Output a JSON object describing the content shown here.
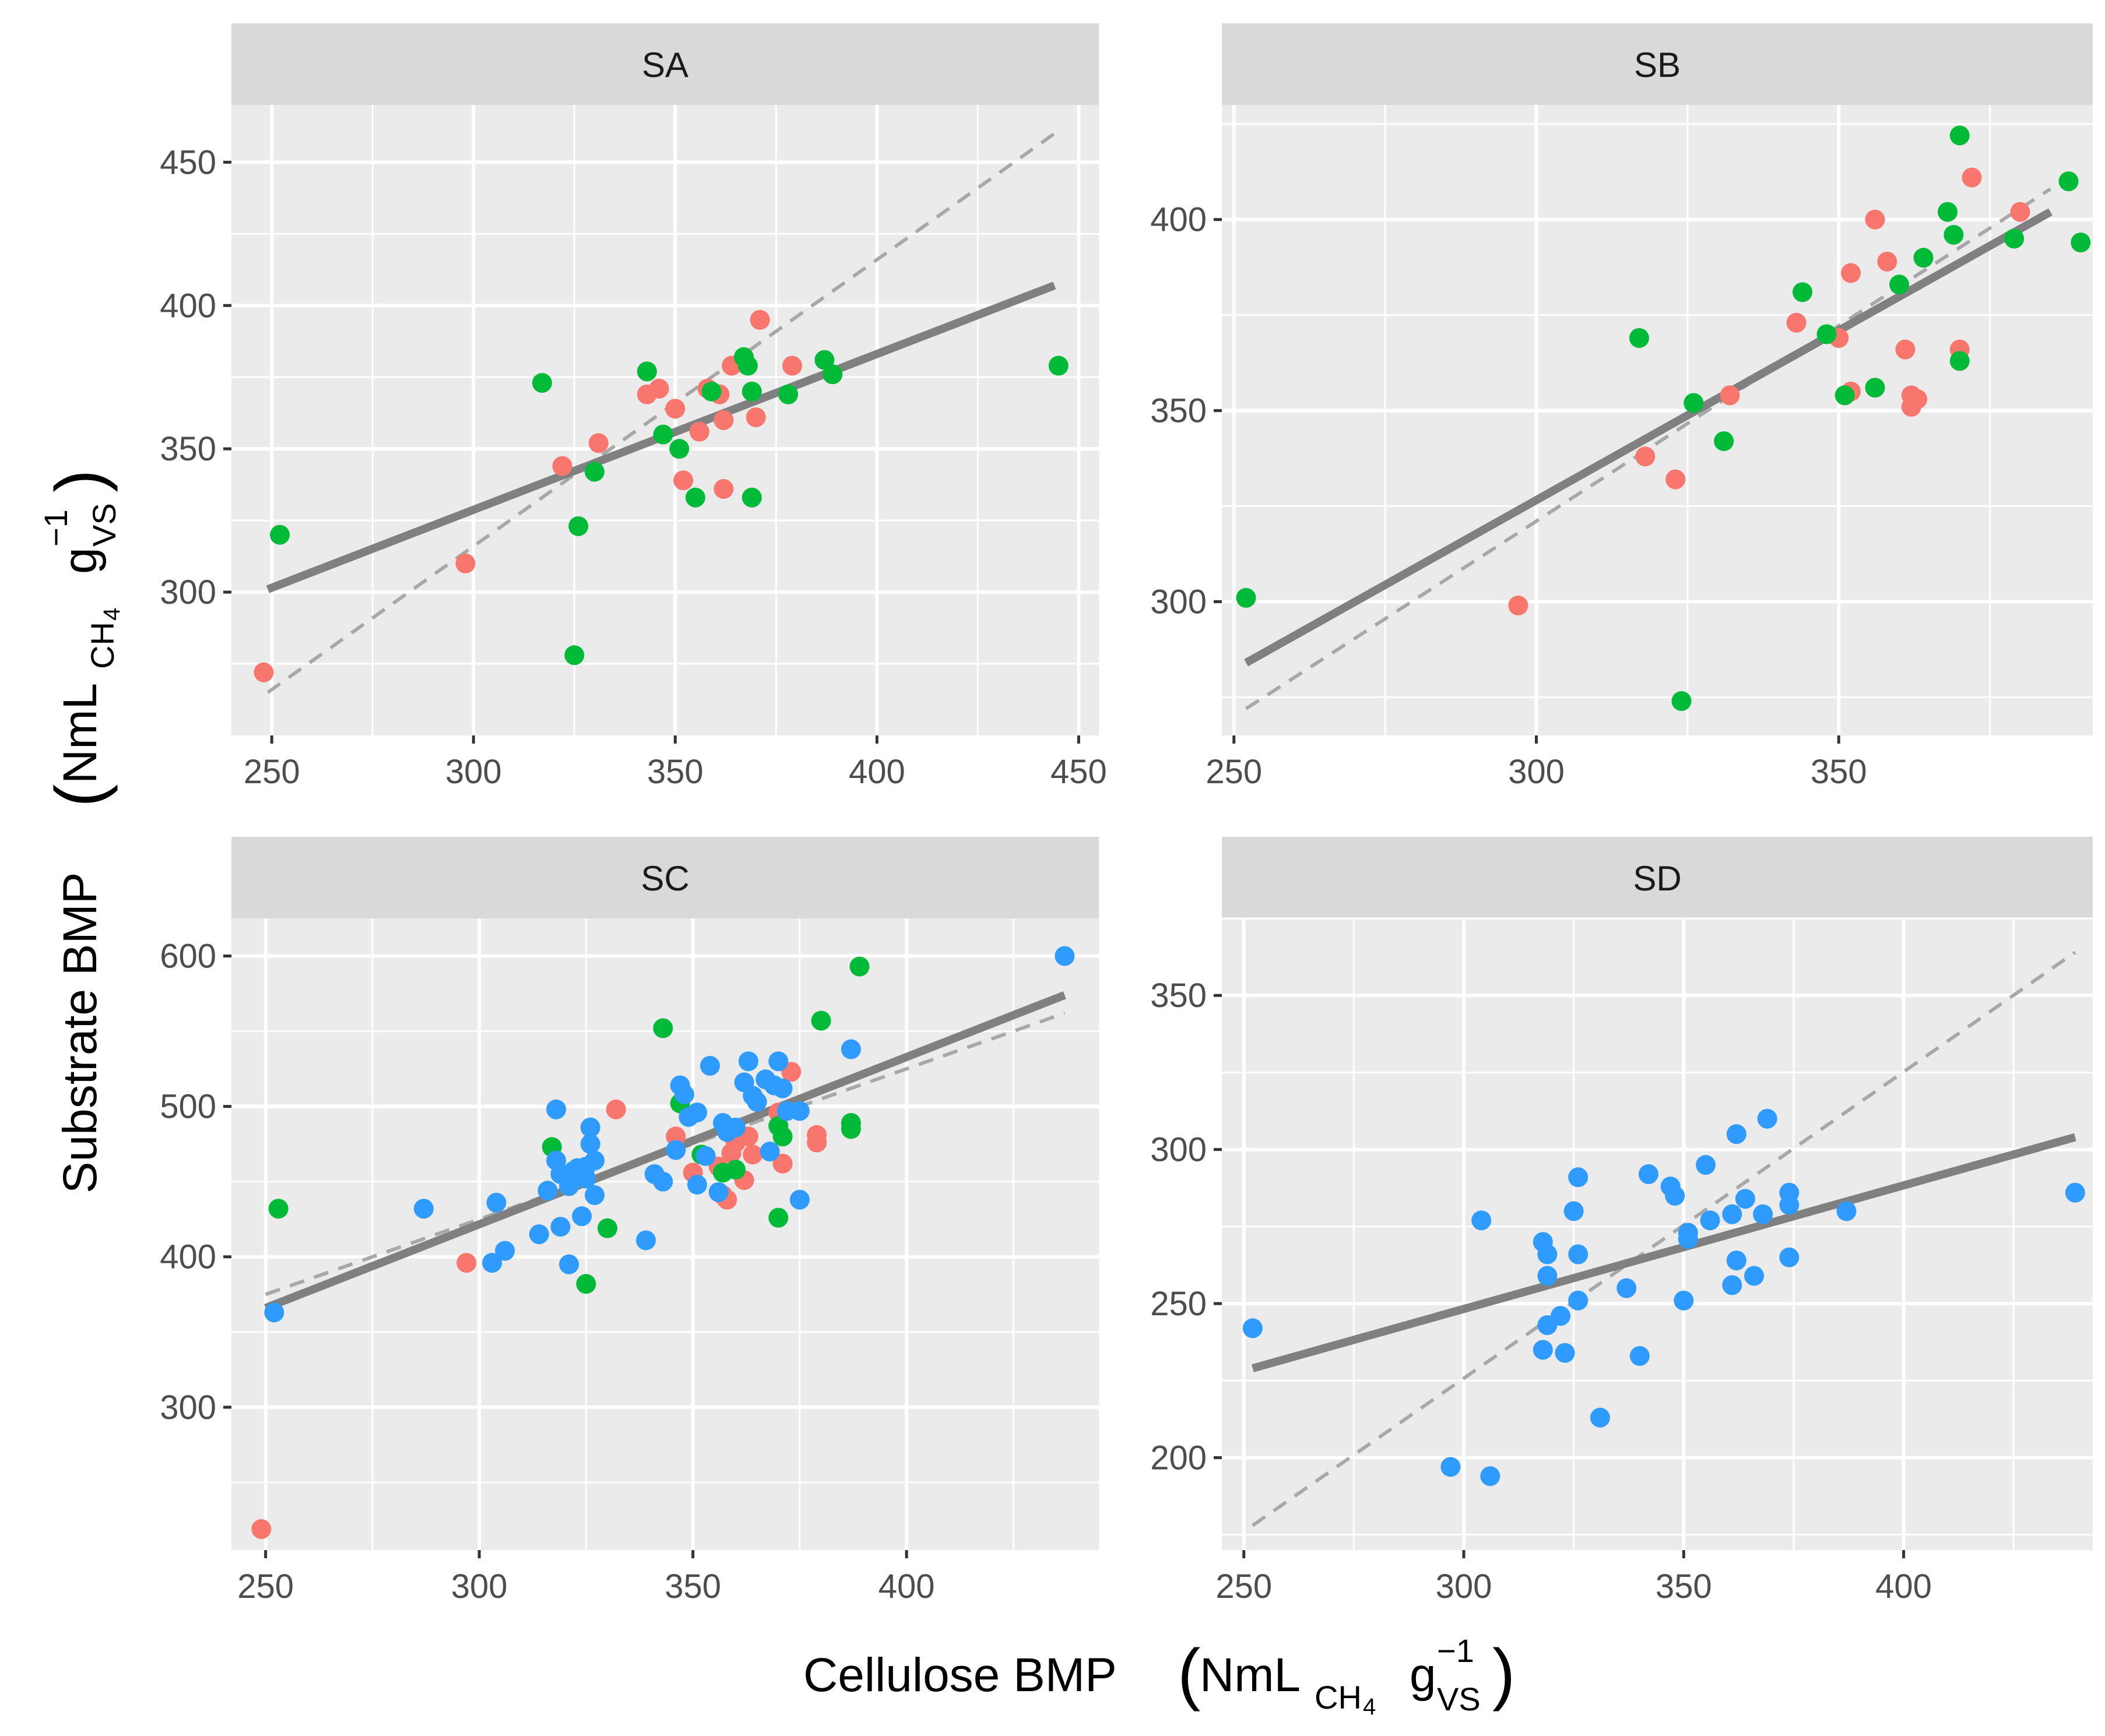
{
  "chart_data": [
    {
      "type": "scatter",
      "panel": "SA",
      "xlim": [
        240,
        455
      ],
      "ylim": [
        250,
        470
      ],
      "x_ticks": [
        250,
        300,
        350,
        400,
        450
      ],
      "x_tick_labels": [
        "250",
        "300",
        "350",
        "400",
        "450"
      ],
      "y_ticks": [
        300,
        350,
        400,
        450
      ],
      "y_tick_labels": [
        "300",
        "350",
        "400",
        "450"
      ],
      "fit": [
        [
          249,
          301
        ],
        [
          444,
          407
        ]
      ],
      "identity": [
        [
          249,
          265
        ],
        [
          445,
          461
        ]
      ],
      "series": [
        {
          "name": "group-1",
          "color": "#F8766D",
          "points": [
            [
              248,
              272
            ],
            [
              298,
              310
            ],
            [
              322,
              344
            ],
            [
              331,
              352
            ],
            [
              343,
              369
            ],
            [
              346,
              371
            ],
            [
              350,
              364
            ],
            [
              352,
              339
            ],
            [
              356,
              356
            ],
            [
              358,
              371
            ],
            [
              361,
              369
            ],
            [
              362,
              360
            ],
            [
              362,
              336
            ],
            [
              364,
              379
            ],
            [
              370,
              361
            ],
            [
              371,
              395
            ],
            [
              379,
              379
            ]
          ]
        },
        {
          "name": "group-2",
          "color": "#00BA38",
          "points": [
            [
              252,
              320
            ],
            [
              317,
              373
            ],
            [
              326,
              323
            ],
            [
              325,
              278
            ],
            [
              330,
              342
            ],
            [
              343,
              377
            ],
            [
              347,
              355
            ],
            [
              351,
              350
            ],
            [
              355,
              333
            ],
            [
              359,
              370
            ],
            [
              367,
              382
            ],
            [
              368,
              379
            ],
            [
              369,
              370
            ],
            [
              369,
              333
            ],
            [
              378,
              369
            ],
            [
              387,
              381
            ],
            [
              389,
              376
            ],
            [
              445,
              379
            ]
          ]
        }
      ]
    },
    {
      "type": "scatter",
      "panel": "SB",
      "xlim": [
        248,
        392
      ],
      "ylim": [
        265,
        430
      ],
      "x_ticks": [
        250,
        300,
        350
      ],
      "x_tick_labels": [
        "250",
        "300",
        "350"
      ],
      "y_ticks": [
        300,
        350,
        400
      ],
      "y_tick_labels": [
        "300",
        "350",
        "400"
      ],
      "fit": [
        [
          252,
          284
        ],
        [
          385,
          402
        ]
      ],
      "identity": [
        [
          252,
          272
        ],
        [
          385,
          408
        ]
      ],
      "series": [
        {
          "name": "group-1",
          "color": "#F8766D",
          "points": [
            [
              297,
              299
            ],
            [
              318,
              338
            ],
            [
              323,
              332
            ],
            [
              332,
              354
            ],
            [
              343,
              373
            ],
            [
              350,
              369
            ],
            [
              352,
              355
            ],
            [
              352,
              386
            ],
            [
              356,
              400
            ],
            [
              358,
              389
            ],
            [
              361,
              366
            ],
            [
              362,
              354
            ],
            [
              362,
              351
            ],
            [
              363,
              353
            ],
            [
              370,
              366
            ],
            [
              372,
              411
            ],
            [
              380,
              402
            ]
          ]
        },
        {
          "name": "group-2",
          "color": "#00BA38",
          "points": [
            [
              252,
              301
            ],
            [
              317,
              369
            ],
            [
              324,
              274
            ],
            [
              326,
              352
            ],
            [
              331,
              342
            ],
            [
              344,
              381
            ],
            [
              348,
              370
            ],
            [
              351,
              354
            ],
            [
              356,
              356
            ],
            [
              360,
              383
            ],
            [
              364,
              390
            ],
            [
              368,
              402
            ],
            [
              369,
              396
            ],
            [
              370,
              363
            ],
            [
              370,
              422
            ],
            [
              379,
              395
            ],
            [
              388,
              410
            ],
            [
              390,
              394
            ]
          ]
        }
      ]
    },
    {
      "type": "scatter",
      "panel": "SC",
      "xlim": [
        242,
        445
      ],
      "ylim": [
        205,
        625
      ],
      "x_ticks": [
        250,
        300,
        350,
        400
      ],
      "x_tick_labels": [
        "250",
        "300",
        "350",
        "400"
      ],
      "y_ticks": [
        300,
        400,
        500,
        600
      ],
      "y_tick_labels": [
        "300",
        "400",
        "500",
        "600"
      ],
      "fit": [
        [
          250,
          366
        ],
        [
          437,
          574
        ]
      ],
      "identity": [
        [
          250,
          375
        ],
        [
          437,
          562
        ]
      ],
      "series": [
        {
          "name": "group-1",
          "color": "#F8766D",
          "points": [
            [
              249,
              219
            ],
            [
              297,
              396
            ],
            [
              332,
              498
            ],
            [
              346,
              480
            ],
            [
              350,
              456
            ],
            [
              356,
              460
            ],
            [
              357,
              441
            ],
            [
              358,
              438
            ],
            [
              359,
              469
            ],
            [
              360,
              476
            ],
            [
              362,
              451
            ],
            [
              363,
              480
            ],
            [
              364,
              468
            ],
            [
              370,
              496
            ],
            [
              371,
              462
            ],
            [
              373,
              523
            ],
            [
              379,
              481
            ],
            [
              379,
              476
            ]
          ]
        },
        {
          "name": "group-2",
          "color": "#00BA38",
          "points": [
            [
              253,
              432
            ],
            [
              317,
              473
            ],
            [
              325,
              382
            ],
            [
              330,
              419
            ],
            [
              343,
              552
            ],
            [
              347,
              502
            ],
            [
              352,
              468
            ],
            [
              357,
              456
            ],
            [
              360,
              458
            ],
            [
              370,
              426
            ],
            [
              370,
              487
            ],
            [
              371,
              480
            ],
            [
              380,
              557
            ],
            [
              387,
              489
            ],
            [
              387,
              485
            ],
            [
              389,
              593
            ]
          ]
        },
        {
          "name": "group-3",
          "color": "#2F9BFF",
          "points": [
            [
              252,
              363
            ],
            [
              287,
              432
            ],
            [
              304,
              436
            ],
            [
              303,
              396
            ],
            [
              306,
              404
            ],
            [
              314,
              415
            ],
            [
              316,
              444
            ],
            [
              318,
              498
            ],
            [
              318,
              464
            ],
            [
              319,
              455
            ],
            [
              319,
              420
            ],
            [
              321,
              395
            ],
            [
              321,
              447
            ],
            [
              322,
              457
            ],
            [
              323,
              459
            ],
            [
              324,
              427
            ],
            [
              325,
              452
            ],
            [
              325,
              460
            ],
            [
              326,
              486
            ],
            [
              326,
              475
            ],
            [
              327,
              464
            ],
            [
              327,
              441
            ],
            [
              339,
              411
            ],
            [
              341,
              455
            ],
            [
              343,
              450
            ],
            [
              346,
              471
            ],
            [
              347,
              514
            ],
            [
              348,
              508
            ],
            [
              349,
              493
            ],
            [
              351,
              496
            ],
            [
              351,
              448
            ],
            [
              353,
              467
            ],
            [
              354,
              527
            ],
            [
              356,
              443
            ],
            [
              357,
              489
            ],
            [
              358,
              483
            ],
            [
              360,
              486
            ],
            [
              362,
              516
            ],
            [
              363,
              530
            ],
            [
              364,
              507
            ],
            [
              365,
              503
            ],
            [
              367,
              518
            ],
            [
              368,
              470
            ],
            [
              369,
              514
            ],
            [
              370,
              530
            ],
            [
              371,
              512
            ],
            [
              372,
              497
            ],
            [
              375,
              497
            ],
            [
              375,
              438
            ],
            [
              387,
              538
            ],
            [
              437,
              600
            ]
          ]
        }
      ]
    },
    {
      "type": "scatter",
      "panel": "SD",
      "xlim": [
        245,
        443
      ],
      "ylim": [
        170,
        375
      ],
      "x_ticks": [
        250,
        300,
        350,
        400
      ],
      "x_tick_labels": [
        "250",
        "300",
        "350",
        "400"
      ],
      "y_ticks": [
        200,
        250,
        300,
        350
      ],
      "y_tick_labels": [
        "200",
        "250",
        "300",
        "350"
      ],
      "fit": [
        [
          252,
          229
        ],
        [
          439,
          304
        ]
      ],
      "identity": [
        [
          252,
          178
        ],
        [
          439,
          364
        ]
      ],
      "series": [
        {
          "name": "group-3",
          "color": "#2F9BFF",
          "points": [
            [
              252,
              242
            ],
            [
              297,
              197
            ],
            [
              304,
              277
            ],
            [
              306,
              194
            ],
            [
              318,
              235
            ],
            [
              318,
              270
            ],
            [
              319,
              259
            ],
            [
              319,
              243
            ],
            [
              319,
              266
            ],
            [
              322,
              246
            ],
            [
              323,
              234
            ],
            [
              325,
              280
            ],
            [
              326,
              291
            ],
            [
              326,
              251
            ],
            [
              326,
              266
            ],
            [
              331,
              213
            ],
            [
              337,
              255
            ],
            [
              340,
              233
            ],
            [
              342,
              292
            ],
            [
              347,
              288
            ],
            [
              348,
              285
            ],
            [
              350,
              251
            ],
            [
              351,
              273
            ],
            [
              351,
              271
            ],
            [
              355,
              295
            ],
            [
              356,
              277
            ],
            [
              361,
              256
            ],
            [
              361,
              279
            ],
            [
              362,
              264
            ],
            [
              362,
              305
            ],
            [
              364,
              284
            ],
            [
              366,
              259
            ],
            [
              368,
              279
            ],
            [
              369,
              310
            ],
            [
              374,
              265
            ],
            [
              374,
              286
            ],
            [
              374,
              282
            ],
            [
              387,
              280
            ],
            [
              439,
              286
            ]
          ]
        }
      ]
    }
  ],
  "panels": {
    "sa": {
      "label": "SA"
    },
    "sb": {
      "label": "SB"
    },
    "sc": {
      "label": "SC"
    },
    "sd": {
      "label": "SD"
    }
  },
  "x_axis_title": {
    "text": "Cellulose BMP",
    "unit": "NmL",
    "unit_sub": "CH",
    "unit_sub2": "4",
    "unit_g": "g",
    "unit_g_sub": "VS",
    "unit_g_sup": "−1"
  },
  "y_axis_title": {
    "text": "Substrate BMP",
    "unit": "NmL",
    "unit_sub": "CH",
    "unit_sub2": "4",
    "unit_g": "g",
    "unit_g_sub": "VS",
    "unit_g_sup": "−1"
  },
  "colors": {
    "panel_bg": "#EBEBEB",
    "strip_bg": "#D9D9D9",
    "grid": "#FFFFFF",
    "fit_line": "#808080",
    "identity_line": "#A8A8A8"
  }
}
